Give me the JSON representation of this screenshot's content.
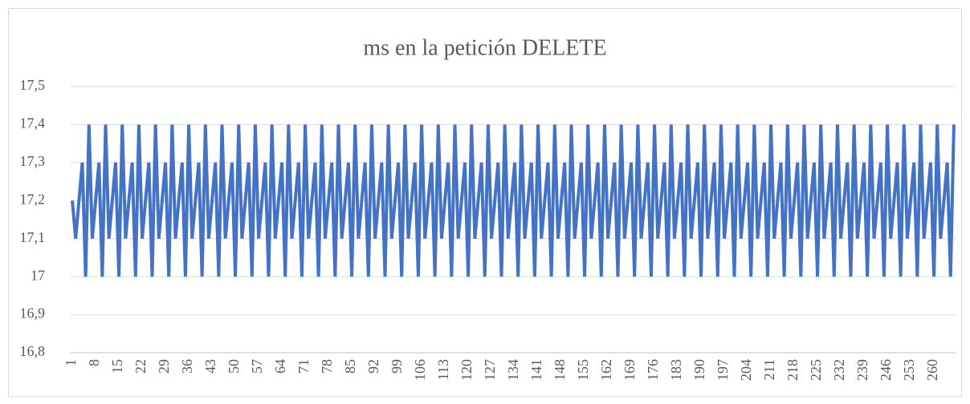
{
  "chart_data": {
    "type": "line",
    "title": "ms en la petición DELETE",
    "color": "#4472c4",
    "grid": true,
    "categories": [
      "1",
      null,
      null,
      null,
      null,
      null,
      null,
      "8",
      null,
      null,
      null,
      null,
      null,
      null,
      "15",
      null,
      null,
      null,
      null,
      null,
      null,
      "22",
      null,
      null,
      null,
      null,
      null,
      null,
      "29",
      null,
      null,
      null,
      null,
      null,
      null,
      "36",
      null,
      null,
      null,
      null,
      null,
      null,
      "43",
      null,
      null,
      null,
      null,
      null,
      null,
      "50",
      null,
      null,
      null,
      null,
      null,
      null,
      "57",
      null,
      null,
      null,
      null,
      null,
      null,
      "64",
      null,
      null,
      null,
      null,
      null,
      null,
      "71",
      null,
      null,
      null,
      null,
      null,
      null,
      "78",
      null,
      null,
      null,
      null,
      null,
      null,
      "85",
      null,
      null,
      null,
      null,
      null,
      null,
      "92",
      null,
      null,
      null,
      null,
      null,
      null,
      "99",
      null,
      null,
      null,
      null,
      null,
      null,
      "106",
      null,
      null,
      null,
      null,
      null,
      null,
      "113",
      null,
      null,
      null,
      null,
      null,
      null,
      "120",
      null,
      null,
      null,
      null,
      null,
      null,
      "127",
      null,
      null,
      null,
      null,
      null,
      null,
      "134",
      null,
      null,
      null,
      null,
      null,
      null,
      "141",
      null,
      null,
      null,
      null,
      null,
      null,
      "148",
      null,
      null,
      null,
      null,
      null,
      null,
      "155",
      null,
      null,
      null,
      null,
      null,
      null,
      "162",
      null,
      null,
      null,
      null,
      null,
      null,
      "169",
      null,
      null,
      null,
      null,
      null,
      null,
      "176",
      null,
      null,
      null,
      null,
      null,
      null,
      "183",
      null,
      null,
      null,
      null,
      null,
      null,
      "190",
      null,
      null,
      null,
      null,
      null,
      null,
      "197",
      null,
      null,
      null,
      null,
      null,
      null,
      "204",
      null,
      null,
      null,
      null,
      null,
      null,
      "211",
      null,
      null,
      null,
      null,
      null,
      null,
      "218",
      null,
      null,
      null,
      null,
      null,
      null,
      "225",
      null,
      null,
      null,
      null,
      null,
      null,
      "232",
      null,
      null,
      null,
      null,
      null,
      null,
      "239",
      null,
      null,
      null,
      null,
      null,
      null,
      "246",
      null,
      null,
      null,
      null,
      null,
      null,
      "253",
      null,
      null,
      null,
      null,
      null,
      null,
      "260",
      null,
      null,
      null,
      null,
      null,
      null
    ],
    "values": [
      17.2,
      17.1,
      17.2,
      17.3,
      17,
      17.4,
      17.1,
      17.2,
      17.3,
      17,
      17.4,
      17.1,
      17.2,
      17.3,
      17,
      17.4,
      17.1,
      17.2,
      17.3,
      17,
      17.4,
      17.1,
      17.2,
      17.3,
      17,
      17.4,
      17.1,
      17.2,
      17.3,
      17,
      17.4,
      17.1,
      17.2,
      17.3,
      17,
      17.4,
      17.1,
      17.2,
      17.3,
      17,
      17.4,
      17.1,
      17.2,
      17.3,
      17,
      17.4,
      17.1,
      17.2,
      17.3,
      17,
      17.4,
      17.1,
      17.2,
      17.3,
      17,
      17.4,
      17.1,
      17.2,
      17.3,
      17,
      17.4,
      17.1,
      17.2,
      17.3,
      17,
      17.4,
      17.1,
      17.2,
      17.3,
      17,
      17.4,
      17.1,
      17.2,
      17.3,
      17,
      17.4,
      17.1,
      17.2,
      17.3,
      17,
      17.4,
      17.1,
      17.2,
      17.3,
      17,
      17.4,
      17.1,
      17.2,
      17.3,
      17,
      17.4,
      17.1,
      17.2,
      17.3,
      17,
      17.4,
      17.1,
      17.2,
      17.3,
      17,
      17.4,
      17.1,
      17.2,
      17.3,
      17,
      17.4,
      17.1,
      17.2,
      17.3,
      17,
      17.4,
      17.1,
      17.2,
      17.3,
      17,
      17.4,
      17.1,
      17.2,
      17.3,
      17,
      17.4,
      17.1,
      17.2,
      17.3,
      17,
      17.4,
      17.1,
      17.2,
      17.3,
      17,
      17.4,
      17.1,
      17.2,
      17.3,
      17,
      17.4,
      17.1,
      17.2,
      17.3,
      17,
      17.4,
      17.1,
      17.2,
      17.3,
      17,
      17.4,
      17.1,
      17.2,
      17.3,
      17,
      17.4,
      17.1,
      17.2,
      17.3,
      17,
      17.4,
      17.1,
      17.2,
      17.3,
      17,
      17.4,
      17.1,
      17.2,
      17.3,
      17,
      17.4,
      17.1,
      17.2,
      17.3,
      17,
      17.4,
      17.1,
      17.2,
      17.3,
      17,
      17.4,
      17.1,
      17.2,
      17.3,
      17,
      17.4,
      17.1,
      17.2,
      17.3,
      17,
      17.4,
      17.1,
      17.2,
      17.3,
      17,
      17.4,
      17.1,
      17.2,
      17.3,
      17,
      17.4,
      17.1,
      17.2,
      17.3,
      17,
      17.4,
      17.1,
      17.2,
      17.3,
      17,
      17.4,
      17.1,
      17.2,
      17.3,
      17,
      17.4,
      17.1,
      17.2,
      17.3,
      17,
      17.4,
      17.1,
      17.2,
      17.3,
      17,
      17.4,
      17.1,
      17.2,
      17.3,
      17,
      17.4,
      17.1,
      17.2,
      17.3,
      17,
      17.4,
      17.1,
      17.2,
      17.3,
      17,
      17.4,
      17.1,
      17.2,
      17.3,
      17,
      17.4,
      17.1,
      17.2,
      17.3,
      17,
      17.4,
      17.1,
      17.2,
      17.3,
      17,
      17.4,
      17.1,
      17.2,
      17.3,
      17,
      17.4,
      17.1,
      17.2,
      17.3,
      17,
      17.4,
      17.1,
      17.2,
      17.3,
      17,
      17.4
    ],
    "ylim": [
      16.8,
      17.5
    ],
    "yticks": [
      {
        "value": 16.8,
        "label": "16,8"
      },
      {
        "value": 16.9,
        "label": "16,9"
      },
      17,
      {
        "value": 17.1,
        "label": "17,1"
      },
      {
        "value": 17.2,
        "label": "17,2"
      },
      {
        "value": 17.3,
        "label": "17,3"
      },
      {
        "value": 17.4,
        "label": "17,4"
      },
      {
        "value": 17.5,
        "label": "17,5"
      }
    ]
  }
}
